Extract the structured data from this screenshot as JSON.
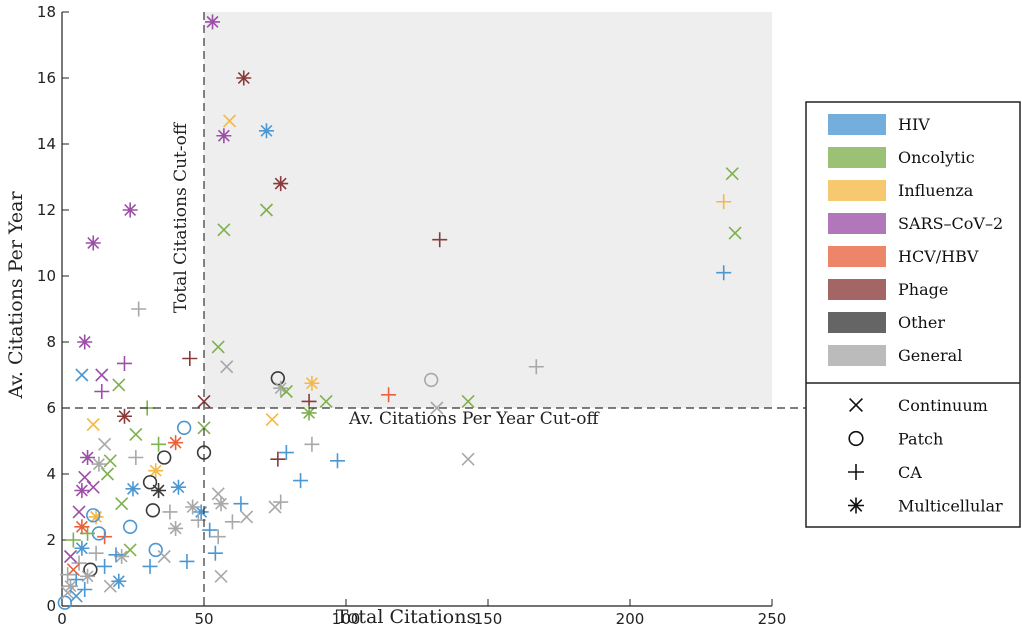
{
  "chart_data": {
    "type": "scatter",
    "xlabel": "Total Citations",
    "ylabel": "Av. Citations Per Year",
    "xlim": [
      0,
      250
    ],
    "ylim": [
      0,
      18
    ],
    "xticks": [
      0,
      50,
      100,
      150,
      200,
      250
    ],
    "yticks": [
      0,
      2,
      4,
      6,
      8,
      10,
      12,
      14,
      16,
      18
    ],
    "grid": false,
    "shaded_region": {
      "x_from": 50,
      "x_to": 250,
      "y_from": 6,
      "y_to": 18
    },
    "cutoffs": {
      "x": 50,
      "x_label": "Total Citations Cut-off",
      "y": 6,
      "y_label": "Av. Citations Per Year Cut-off"
    },
    "legend": {
      "position": "right",
      "categories": [
        {
          "name": "HIV",
          "color": "#4b97d2"
        },
        {
          "name": "Oncolytic",
          "color": "#7fb04e"
        },
        {
          "name": "Influenza",
          "color": "#f4b847"
        },
        {
          "name": "SARS–CoV–2",
          "color": "#9c4fa7"
        },
        {
          "name": "HCV/HBV",
          "color": "#e8633d"
        },
        {
          "name": "Phage",
          "color": "#8b3a3a"
        },
        {
          "name": "Other",
          "color": "#3a3a3a"
        },
        {
          "name": "General",
          "color": "#a8a8a8"
        }
      ],
      "markers": [
        {
          "name": "Continuum",
          "symbol": "x"
        },
        {
          "name": "Patch",
          "symbol": "o"
        },
        {
          "name": "CA",
          "symbol": "+"
        },
        {
          "name": "Multicellular",
          "symbol": "*"
        }
      ]
    },
    "points": [
      {
        "x": 53,
        "y": 17.7,
        "cat": "SARS–CoV–2",
        "m": "*"
      },
      {
        "x": 64,
        "y": 16.0,
        "cat": "Phage",
        "m": "*"
      },
      {
        "x": 59,
        "y": 14.7,
        "cat": "Influenza",
        "m": "x"
      },
      {
        "x": 72,
        "y": 14.4,
        "cat": "HIV",
        "m": "*"
      },
      {
        "x": 57,
        "y": 14.25,
        "cat": "SARS–CoV–2",
        "m": "*"
      },
      {
        "x": 77,
        "y": 12.8,
        "cat": "Phage",
        "m": "*"
      },
      {
        "x": 72,
        "y": 12.0,
        "cat": "Oncolytic",
        "m": "x"
      },
      {
        "x": 57,
        "y": 11.4,
        "cat": "Oncolytic",
        "m": "x"
      },
      {
        "x": 133,
        "y": 11.1,
        "cat": "Phage",
        "m": "+"
      },
      {
        "x": 236,
        "y": 13.1,
        "cat": "Oncolytic",
        "m": "x"
      },
      {
        "x": 233,
        "y": 12.25,
        "cat": "Influenza",
        "m": "+"
      },
      {
        "x": 237,
        "y": 11.3,
        "cat": "Oncolytic",
        "m": "x"
      },
      {
        "x": 233,
        "y": 10.1,
        "cat": "HIV",
        "m": "+"
      },
      {
        "x": 55,
        "y": 7.85,
        "cat": "Oncolytic",
        "m": "x"
      },
      {
        "x": 58,
        "y": 7.25,
        "cat": "General",
        "m": "x"
      },
      {
        "x": 76,
        "y": 6.9,
        "cat": "Other",
        "m": "o"
      },
      {
        "x": 77,
        "y": 6.6,
        "cat": "General",
        "m": "*"
      },
      {
        "x": 79,
        "y": 6.5,
        "cat": "Oncolytic",
        "m": "x"
      },
      {
        "x": 88,
        "y": 6.75,
        "cat": "Influenza",
        "m": "*"
      },
      {
        "x": 87,
        "y": 6.2,
        "cat": "Phage",
        "m": "+"
      },
      {
        "x": 93,
        "y": 6.2,
        "cat": "Oncolytic",
        "m": "x"
      },
      {
        "x": 115,
        "y": 6.4,
        "cat": "HCV/HBV",
        "m": "+"
      },
      {
        "x": 130,
        "y": 6.85,
        "cat": "General",
        "m": "o"
      },
      {
        "x": 143,
        "y": 6.2,
        "cat": "Oncolytic",
        "m": "x"
      },
      {
        "x": 132,
        "y": 6.0,
        "cat": "General",
        "m": "x"
      },
      {
        "x": 167,
        "y": 7.25,
        "cat": "General",
        "m": "+"
      },
      {
        "x": 74,
        "y": 5.65,
        "cat": "Influenza",
        "m": "x"
      },
      {
        "x": 87,
        "y": 5.85,
        "cat": "Oncolytic",
        "m": "*"
      },
      {
        "x": 88,
        "y": 4.9,
        "cat": "General",
        "m": "+"
      },
      {
        "x": 97,
        "y": 4.4,
        "cat": "HIV",
        "m": "+"
      },
      {
        "x": 143,
        "y": 4.45,
        "cat": "General",
        "m": "x"
      },
      {
        "x": 79,
        "y": 4.65,
        "cat": "HIV",
        "m": "+"
      },
      {
        "x": 76,
        "y": 4.45,
        "cat": "Phage",
        "m": "+"
      },
      {
        "x": 84,
        "y": 3.8,
        "cat": "HIV",
        "m": "+"
      },
      {
        "x": 75,
        "y": 3.0,
        "cat": "General",
        "m": "x"
      },
      {
        "x": 77,
        "y": 3.15,
        "cat": "General",
        "m": "+"
      },
      {
        "x": 63,
        "y": 3.1,
        "cat": "HIV",
        "m": "+"
      },
      {
        "x": 65,
        "y": 2.7,
        "cat": "General",
        "m": "x"
      },
      {
        "x": 60,
        "y": 2.55,
        "cat": "General",
        "m": "+"
      },
      {
        "x": 55,
        "y": 3.4,
        "cat": "General",
        "m": "x"
      },
      {
        "x": 56,
        "y": 3.1,
        "cat": "General",
        "m": "*"
      },
      {
        "x": 52,
        "y": 2.3,
        "cat": "HIV",
        "m": "+"
      },
      {
        "x": 54,
        "y": 1.6,
        "cat": "HIV",
        "m": "+"
      },
      {
        "x": 56,
        "y": 0.9,
        "cat": "General",
        "m": "x"
      },
      {
        "x": 55,
        "y": 2.1,
        "cat": "General",
        "m": "+"
      },
      {
        "x": 50,
        "y": 4.65,
        "cat": "Other",
        "m": "o"
      },
      {
        "x": 50,
        "y": 5.4,
        "cat": "Oncolytic",
        "m": "x"
      },
      {
        "x": 50,
        "y": 6.2,
        "cat": "Phage",
        "m": "x"
      },
      {
        "x": 45,
        "y": 7.5,
        "cat": "Phage",
        "m": "+"
      },
      {
        "x": 49,
        "y": 2.85,
        "cat": "HIV",
        "m": "*"
      },
      {
        "x": 48,
        "y": 2.6,
        "cat": "General",
        "m": "+"
      },
      {
        "x": 46,
        "y": 3.0,
        "cat": "General",
        "m": "*"
      },
      {
        "x": 44,
        "y": 1.35,
        "cat": "HIV",
        "m": "+"
      },
      {
        "x": 43,
        "y": 5.4,
        "cat": "HIV",
        "m": "o"
      },
      {
        "x": 41,
        "y": 3.6,
        "cat": "HIV",
        "m": "*"
      },
      {
        "x": 40,
        "y": 2.35,
        "cat": "General",
        "m": "*"
      },
      {
        "x": 40,
        "y": 4.95,
        "cat": "HCV/HBV",
        "m": "*"
      },
      {
        "x": 36,
        "y": 4.5,
        "cat": "Other",
        "m": "o"
      },
      {
        "x": 34,
        "y": 3.5,
        "cat": "Other",
        "m": "*"
      },
      {
        "x": 34,
        "y": 4.9,
        "cat": "Oncolytic",
        "m": "+"
      },
      {
        "x": 33,
        "y": 4.1,
        "cat": "Influenza",
        "m": "*"
      },
      {
        "x": 32,
        "y": 2.9,
        "cat": "Other",
        "m": "o"
      },
      {
        "x": 33,
        "y": 1.7,
        "cat": "HIV",
        "m": "o"
      },
      {
        "x": 31,
        "y": 3.75,
        "cat": "Other",
        "m": "o"
      },
      {
        "x": 31,
        "y": 1.2,
        "cat": "HIV",
        "m": "+"
      },
      {
        "x": 30,
        "y": 6.0,
        "cat": "Oncolytic",
        "m": "+"
      },
      {
        "x": 27,
        "y": 9.0,
        "cat": "General",
        "m": "+"
      },
      {
        "x": 26,
        "y": 5.2,
        "cat": "Oncolytic",
        "m": "x"
      },
      {
        "x": 26,
        "y": 4.5,
        "cat": "General",
        "m": "+"
      },
      {
        "x": 25,
        "y": 3.55,
        "cat": "HIV",
        "m": "*"
      },
      {
        "x": 24,
        "y": 2.4,
        "cat": "HIV",
        "m": "o"
      },
      {
        "x": 24,
        "y": 1.7,
        "cat": "Oncolytic",
        "m": "x"
      },
      {
        "x": 24,
        "y": 12.0,
        "cat": "SARS–CoV–2",
        "m": "*"
      },
      {
        "x": 22,
        "y": 5.75,
        "cat": "Phage",
        "m": "*"
      },
      {
        "x": 22,
        "y": 7.35,
        "cat": "SARS–CoV–2",
        "m": "+"
      },
      {
        "x": 21,
        "y": 3.1,
        "cat": "Oncolytic",
        "m": "x"
      },
      {
        "x": 21,
        "y": 1.5,
        "cat": "General",
        "m": "*"
      },
      {
        "x": 20,
        "y": 6.7,
        "cat": "Oncolytic",
        "m": "x"
      },
      {
        "x": 19,
        "y": 1.55,
        "cat": "HIV",
        "m": "+"
      },
      {
        "x": 17,
        "y": 4.4,
        "cat": "Oncolytic",
        "m": "x"
      },
      {
        "x": 16,
        "y": 4.0,
        "cat": "Oncolytic",
        "m": "x"
      },
      {
        "x": 15,
        "y": 4.9,
        "cat": "General",
        "m": "x"
      },
      {
        "x": 15,
        "y": 2.1,
        "cat": "HCV/HBV",
        "m": "+"
      },
      {
        "x": 15,
        "y": 1.2,
        "cat": "HIV",
        "m": "+"
      },
      {
        "x": 14,
        "y": 6.5,
        "cat": "SARS–CoV–2",
        "m": "+"
      },
      {
        "x": 14,
        "y": 7.0,
        "cat": "SARS–CoV–2",
        "m": "x"
      },
      {
        "x": 13,
        "y": 4.3,
        "cat": "General",
        "m": "*"
      },
      {
        "x": 13,
        "y": 2.2,
        "cat": "HIV",
        "m": "o"
      },
      {
        "x": 12,
        "y": 2.7,
        "cat": "Influenza",
        "m": "*"
      },
      {
        "x": 11,
        "y": 11.0,
        "cat": "SARS–CoV–2",
        "m": "*"
      },
      {
        "x": 11,
        "y": 5.5,
        "cat": "Influenza",
        "m": "x"
      },
      {
        "x": 11,
        "y": 3.6,
        "cat": "SARS–CoV–2",
        "m": "x"
      },
      {
        "x": 11,
        "y": 2.75,
        "cat": "HIV",
        "m": "o"
      },
      {
        "x": 10,
        "y": 1.1,
        "cat": "Other",
        "m": "o"
      },
      {
        "x": 9,
        "y": 4.5,
        "cat": "SARS–CoV–2",
        "m": "*"
      },
      {
        "x": 9,
        "y": 2.2,
        "cat": "Oncolytic",
        "m": "+"
      },
      {
        "x": 8,
        "y": 8.0,
        "cat": "SARS–CoV–2",
        "m": "*"
      },
      {
        "x": 8,
        "y": 3.9,
        "cat": "SARS–CoV–2",
        "m": "x"
      },
      {
        "x": 8,
        "y": 0.5,
        "cat": "HIV",
        "m": "+"
      },
      {
        "x": 7,
        "y": 7.0,
        "cat": "HIV",
        "m": "x"
      },
      {
        "x": 7,
        "y": 3.5,
        "cat": "SARS–CoV–2",
        "m": "*"
      },
      {
        "x": 7,
        "y": 2.4,
        "cat": "HCV/HBV",
        "m": "*"
      },
      {
        "x": 7,
        "y": 1.75,
        "cat": "HIV",
        "m": "*"
      },
      {
        "x": 6,
        "y": 2.85,
        "cat": "SARS–CoV–2",
        "m": "x"
      },
      {
        "x": 6,
        "y": 1.3,
        "cat": "General",
        "m": "+"
      },
      {
        "x": 5,
        "y": 0.8,
        "cat": "HIV",
        "m": "+"
      },
      {
        "x": 4,
        "y": 2.0,
        "cat": "Oncolytic",
        "m": "+"
      },
      {
        "x": 4,
        "y": 1.1,
        "cat": "HCV/HBV",
        "m": "x"
      },
      {
        "x": 3,
        "y": 1.5,
        "cat": "SARS–CoV–2",
        "m": "x"
      },
      {
        "x": 3,
        "y": 0.6,
        "cat": "General",
        "m": "*"
      },
      {
        "x": 2,
        "y": 0.95,
        "cat": "General",
        "m": "+"
      },
      {
        "x": 1,
        "y": 0.1,
        "cat": "HIV",
        "m": "o"
      },
      {
        "x": 2,
        "y": 0.4,
        "cat": "General",
        "m": "x"
      },
      {
        "x": 9,
        "y": 0.9,
        "cat": "General",
        "m": "*"
      },
      {
        "x": 17,
        "y": 0.6,
        "cat": "General",
        "m": "x"
      },
      {
        "x": 20,
        "y": 0.75,
        "cat": "HIV",
        "m": "*"
      },
      {
        "x": 38,
        "y": 2.85,
        "cat": "General",
        "m": "+"
      },
      {
        "x": 36,
        "y": 1.5,
        "cat": "General",
        "m": "x"
      },
      {
        "x": 12,
        "y": 1.6,
        "cat": "General",
        "m": "+"
      },
      {
        "x": 5,
        "y": 0.3,
        "cat": "HIV",
        "m": "x"
      }
    ]
  }
}
